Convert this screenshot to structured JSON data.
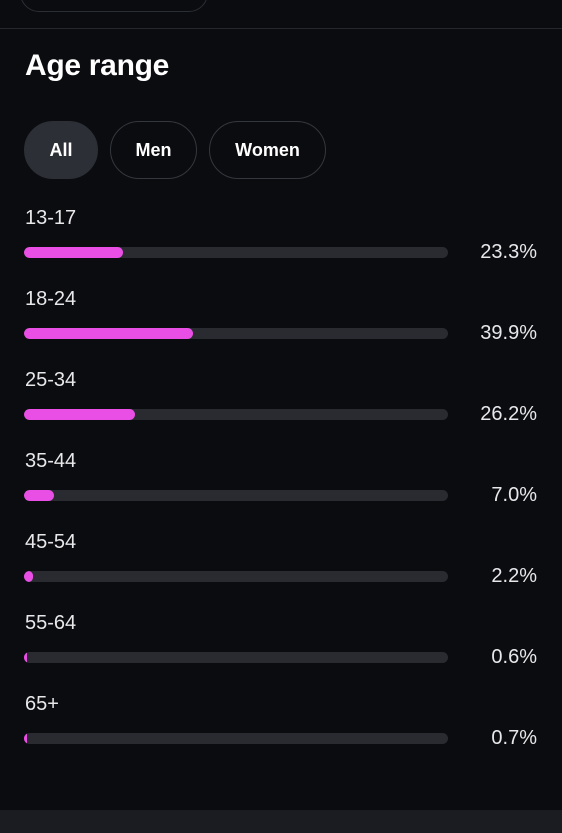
{
  "section": {
    "title": "Age range"
  },
  "tabs": [
    {
      "label": "All",
      "active": true
    },
    {
      "label": "Men",
      "active": false
    },
    {
      "label": "Women",
      "active": false
    }
  ],
  "colors": {
    "bar_fill": "#e94fe4",
    "bar_track": "#2a2b31",
    "background": "#0b0c10"
  },
  "age_groups": [
    {
      "label": "13-17",
      "value": "23.3%",
      "percent": 23.3
    },
    {
      "label": "18-24",
      "value": "39.9%",
      "percent": 39.9
    },
    {
      "label": "25-34",
      "value": "26.2%",
      "percent": 26.2
    },
    {
      "label": "35-44",
      "value": "7.0%",
      "percent": 7.0
    },
    {
      "label": "45-54",
      "value": "2.2%",
      "percent": 2.2
    },
    {
      "label": "55-64",
      "value": "0.6%",
      "percent": 0.6
    },
    {
      "label": "65+",
      "value": "0.7%",
      "percent": 0.7
    }
  ]
}
